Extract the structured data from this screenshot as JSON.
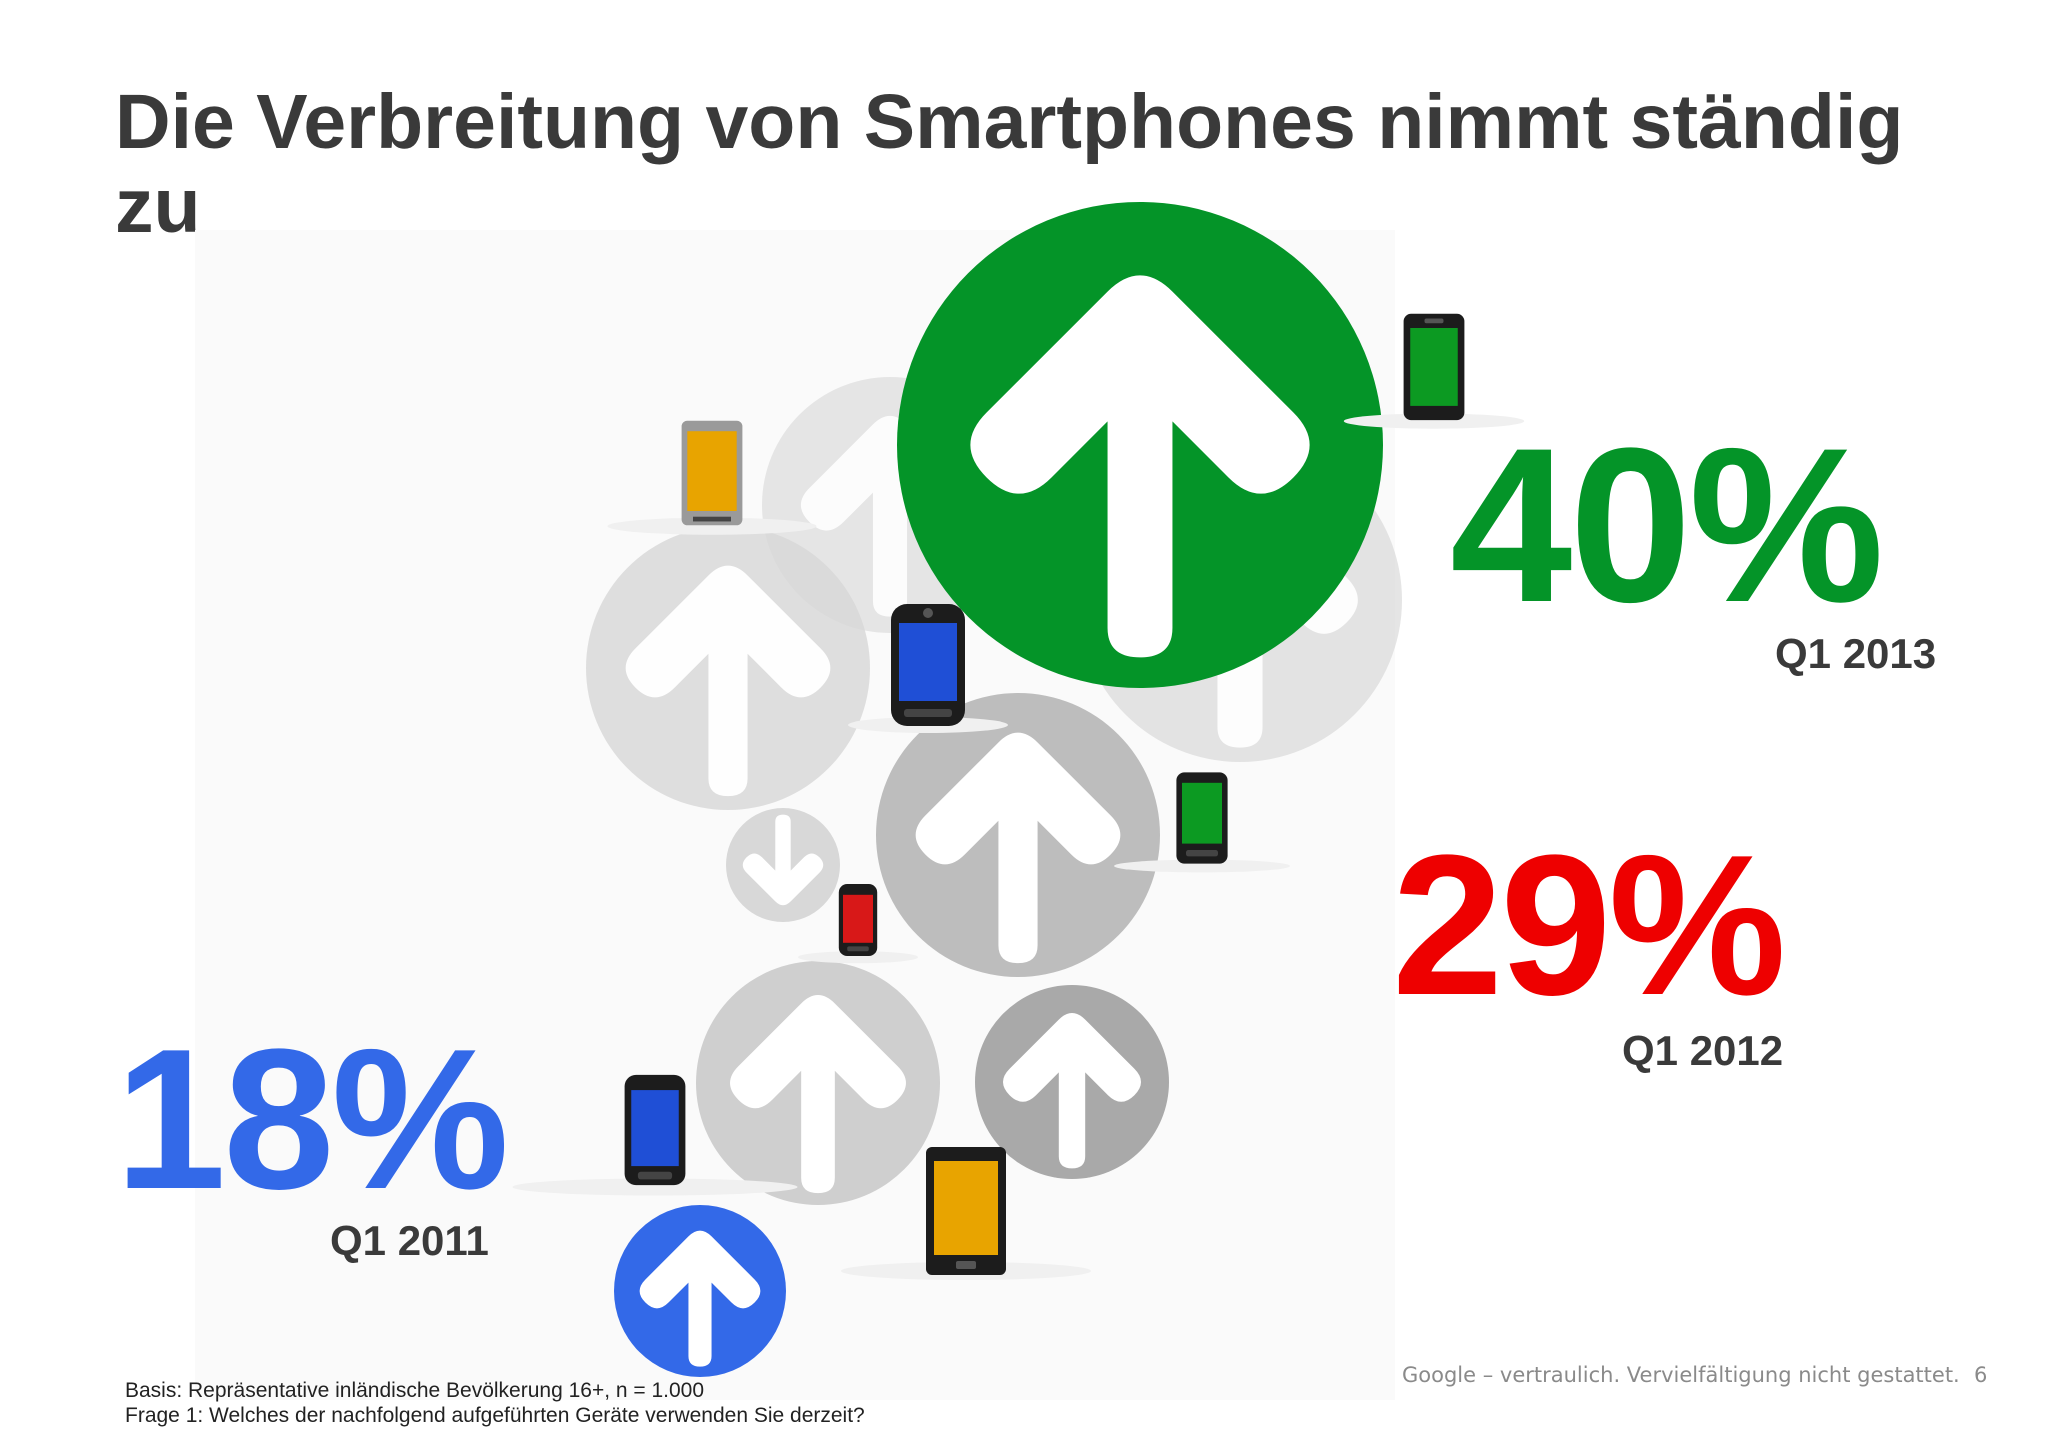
{
  "slide": {
    "title": "Die Verbreitung von Smartphones nimmt ständig zu",
    "footnote_line1": "Basis: Repräsentative inländische Bevölkerung 16+, n = 1.000",
    "footnote_line2": "Frage 1: Welches der nachfolgend aufgeführten Geräte verwenden Sie derzeit?",
    "confidential": "Google – vertraulich. Vervielfältigung nicht gestattet.",
    "page_number": "6"
  },
  "chart_data": {
    "type": "pictograph",
    "title": "Die Verbreitung von Smartphones nimmt ständig zu",
    "categories": [
      "Q1 2011",
      "Q1 2012",
      "Q1 2013"
    ],
    "values": [
      18,
      29,
      40
    ],
    "value_labels": [
      "18%",
      "29%",
      "40%"
    ],
    "colors": [
      "#3369e8",
      "#ee0000",
      "#049428"
    ],
    "legend": "none",
    "grid": false
  },
  "icons": {
    "arrow": "up-arrow-icon",
    "phone": "smartphone-icon"
  }
}
